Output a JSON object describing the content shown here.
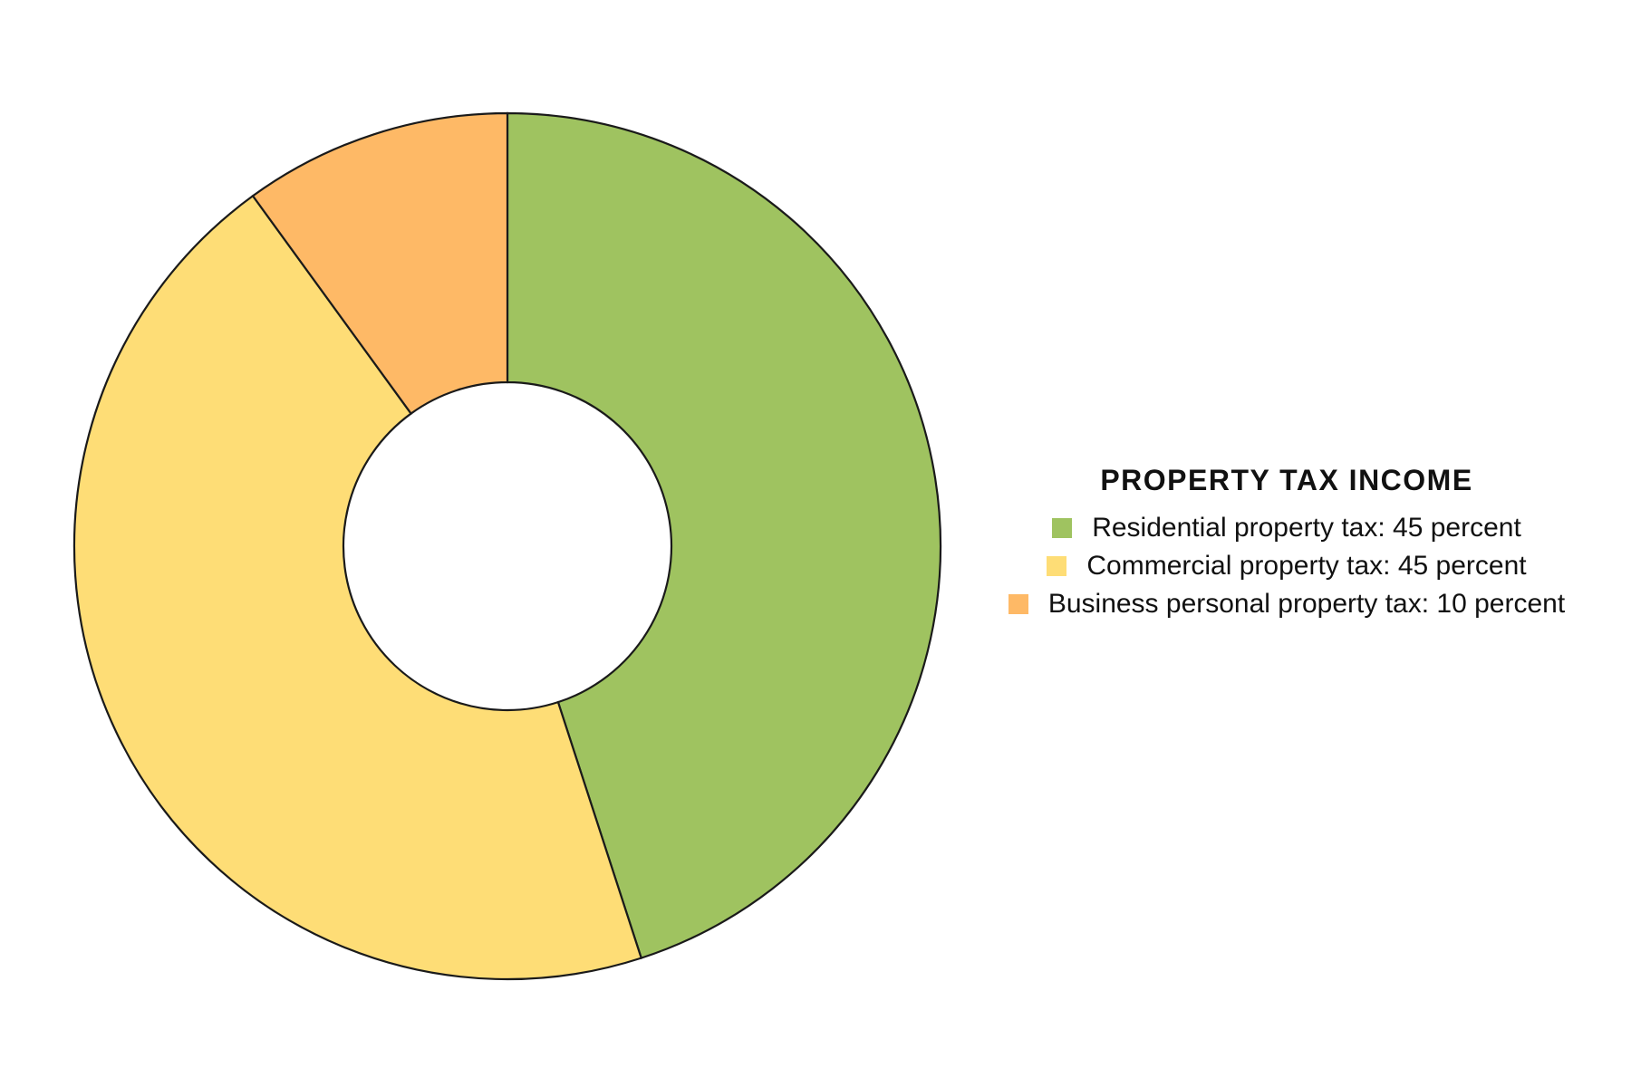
{
  "chart_data": {
    "type": "pie",
    "variant": "donut",
    "title": "PROPERTY TAX INCOME",
    "legend_position": "right",
    "slices": [
      {
        "label": "Residential property tax: 45 percent",
        "value": 45,
        "color": "#9fc360"
      },
      {
        "label": "Commercial property tax: 45 percent",
        "value": 45,
        "color": "#fedd76"
      },
      {
        "label": "Business personal property tax: 10 percent",
        "value": 10,
        "color": "#feb966"
      }
    ]
  }
}
